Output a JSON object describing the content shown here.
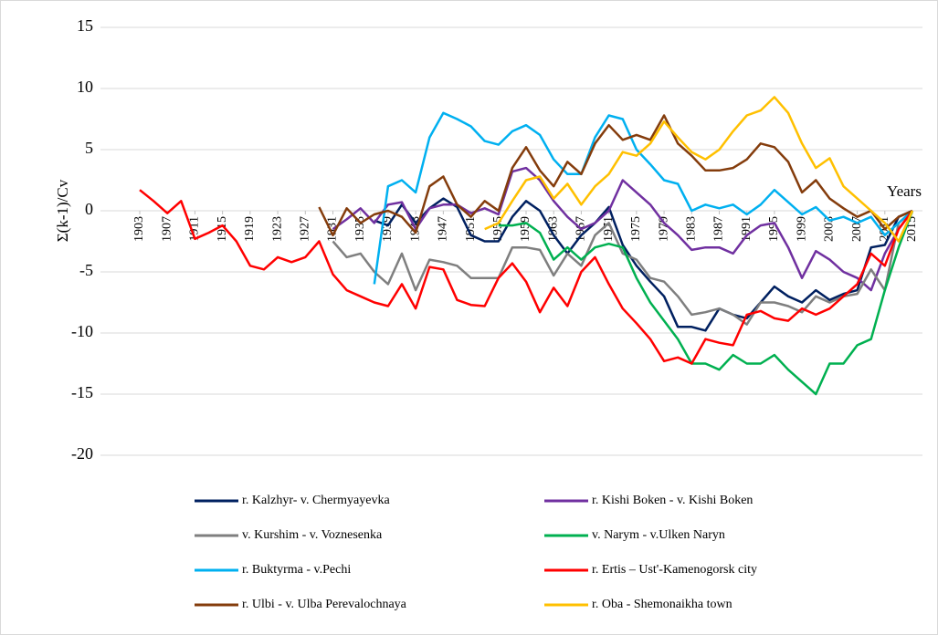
{
  "chart_data": {
    "type": "line",
    "y_label": "Σ(k-1)/Cv",
    "x_label": "Years",
    "x": [
      1903,
      1905,
      1907,
      1909,
      1911,
      1913,
      1915,
      1917,
      1919,
      1921,
      1923,
      1925,
      1927,
      1929,
      1931,
      1933,
      1935,
      1937,
      1939,
      1941,
      1943,
      1945,
      1947,
      1949,
      1951,
      1953,
      1955,
      1957,
      1959,
      1961,
      1963,
      1965,
      1967,
      1969,
      1971,
      1973,
      1975,
      1977,
      1979,
      1981,
      1983,
      1985,
      1987,
      1989,
      1991,
      1993,
      1995,
      1997,
      1999,
      2001,
      2003,
      2005,
      2007,
      2009,
      2011,
      2013,
      2015
    ],
    "xlim": [
      1903,
      2015
    ],
    "xticks": [
      1903,
      1907,
      1911,
      1915,
      1919,
      1923,
      1927,
      1931,
      1935,
      1939,
      1943,
      1947,
      1951,
      1955,
      1959,
      1963,
      1967,
      1971,
      1975,
      1979,
      1983,
      1987,
      1991,
      1995,
      1999,
      2003,
      2007,
      2011,
      2015
    ],
    "ylim": [
      -20,
      15
    ],
    "yticks": [
      -20,
      -15,
      -10,
      -5,
      0,
      5,
      10,
      15
    ],
    "grid": true,
    "legend": "bottom",
    "series": [
      {
        "name": "r. Kalzhyr- v. Chermyayevka",
        "color": "#002060",
        "values": [
          null,
          null,
          null,
          null,
          null,
          null,
          null,
          null,
          null,
          null,
          null,
          null,
          null,
          null,
          null,
          null,
          null,
          -0.8,
          -1.2,
          0.5,
          -1.0,
          0.2,
          1.0,
          0.3,
          -2.0,
          -2.5,
          -2.5,
          -0.5,
          0.8,
          0,
          -2.0,
          -3.5,
          -2.0,
          -1.0,
          0.3,
          -2.8,
          -4.5,
          -5.8,
          -7.0,
          -9.5,
          -9.5,
          -9.8,
          -8.0,
          -8.5,
          -8.8,
          -7.5,
          -6.2,
          -7.0,
          -7.5,
          -6.5,
          -7.3,
          -6.8,
          -6.5,
          -3.0,
          -2.8,
          -0.5,
          0
        ]
      },
      {
        "name": "r. Kishi Boken - v. Kishi Boken",
        "color": "#7030a0",
        "values": [
          null,
          null,
          null,
          null,
          null,
          null,
          null,
          null,
          null,
          null,
          null,
          null,
          null,
          null,
          -1.5,
          -0.7,
          0.2,
          -1.0,
          0.5,
          0.7,
          -1.5,
          0.2,
          0.5,
          0.5,
          -0.2,
          0.2,
          -0.3,
          3.2,
          3.5,
          2.5,
          0.8,
          -0.5,
          -1.5,
          -1.0,
          0,
          2.5,
          1.5,
          0.5,
          -1.0,
          -2.0,
          -3.2,
          -3.0,
          -3.0,
          -3.5,
          -2.0,
          -1.2,
          -1.0,
          -3.0,
          -5.5,
          -3.3,
          -4.0,
          -5.0,
          -5.5,
          -6.5,
          -3.5,
          -1.5,
          0
        ]
      },
      {
        "name": "v. Kurshim - v. Voznesenka",
        "color": "#7f7f7f",
        "values": [
          null,
          null,
          null,
          null,
          null,
          null,
          null,
          null,
          null,
          null,
          null,
          null,
          null,
          null,
          -2.5,
          -3.8,
          -3.5,
          -5.0,
          -6.0,
          -3.5,
          -6.5,
          -4.0,
          -4.2,
          -4.5,
          -5.5,
          -5.5,
          -5.5,
          -3.0,
          -3.0,
          -3.2,
          -5.3,
          -3.5,
          -4.5,
          -2.0,
          -1.0,
          -3.5,
          -4.0,
          -5.5,
          -5.8,
          -7.0,
          -8.5,
          -8.3,
          -8.0,
          -8.5,
          -9.3,
          -7.5,
          -7.5,
          -7.8,
          -8.3,
          -7.0,
          -7.5,
          -7.0,
          -6.8,
          -4.8,
          -6.5,
          -1.0,
          0
        ]
      },
      {
        "name": "v. Narym - v.Ulken Naryn",
        "color": "#00b050",
        "values": [
          null,
          null,
          null,
          null,
          null,
          null,
          null,
          null,
          null,
          null,
          null,
          null,
          null,
          null,
          null,
          null,
          null,
          null,
          null,
          null,
          null,
          null,
          null,
          null,
          null,
          null,
          -1.2,
          -1.2,
          -1.0,
          -1.8,
          -4.0,
          -3.0,
          -4.0,
          -3.0,
          -2.7,
          -3.0,
          -5.5,
          -7.5,
          -9.0,
          -10.5,
          -12.5,
          -12.5,
          -13.0,
          -11.8,
          -12.5,
          -12.5,
          -11.8,
          -13.0,
          -14.0,
          -15.0,
          -12.5,
          -12.5,
          -11.0,
          -10.5,
          -6.5,
          -3.0,
          0
        ]
      },
      {
        "name": "r. Buktyrma - v.Pechi",
        "color": "#00b0f0",
        "values": [
          null,
          null,
          null,
          null,
          null,
          null,
          null,
          null,
          null,
          null,
          null,
          null,
          null,
          null,
          null,
          null,
          null,
          -6.0,
          2.0,
          2.5,
          1.5,
          6.0,
          8.0,
          7.5,
          6.9,
          5.7,
          5.4,
          6.5,
          7.0,
          6.2,
          4.2,
          3.0,
          3.0,
          6.0,
          7.8,
          7.5,
          5.0,
          3.8,
          2.5,
          2.2,
          0,
          0.5,
          0.2,
          0.5,
          -0.3,
          0.5,
          1.7,
          0.7,
          -0.3,
          0.3,
          -0.8,
          -0.5,
          -1.0,
          -0.5,
          -2.0,
          -1.0,
          0
        ]
      },
      {
        "name": "r. Ertis – Ust'-Kamenogorsk city",
        "color": "#ff0000",
        "values": [
          1.7,
          0.8,
          -0.2,
          0.8,
          -2.3,
          -1.8,
          -1.2,
          -2.5,
          -4.5,
          -4.8,
          -3.8,
          -4.2,
          -3.8,
          -2.5,
          -5.2,
          -6.5,
          -7.0,
          -7.5,
          -7.8,
          -6.0,
          -8.0,
          -4.6,
          -4.8,
          -7.3,
          -7.7,
          -7.8,
          -5.5,
          -4.3,
          -5.8,
          -8.3,
          -6.3,
          -7.8,
          -5.0,
          -3.8,
          -6.0,
          -8.0,
          -9.2,
          -10.5,
          -12.3,
          -12.0,
          -12.5,
          -10.5,
          -10.8,
          -11.0,
          -8.5,
          -8.2,
          -8.8,
          -9.0,
          -8.0,
          -8.5,
          -8.0,
          -7.0,
          -6.0,
          -3.5,
          -4.5,
          -1.5,
          0
        ]
      },
      {
        "name": "r. Ulbi - v. Ulba Perevalochnaya",
        "color": "#843c0c",
        "values": [
          null,
          null,
          null,
          null,
          null,
          null,
          null,
          null,
          null,
          null,
          null,
          null,
          null,
          0.3,
          -2.0,
          0.2,
          -1.0,
          -0.3,
          0,
          -0.5,
          -1.8,
          2.0,
          2.8,
          0.5,
          -0.5,
          0.8,
          0,
          3.5,
          5.2,
          3.3,
          2.0,
          4.0,
          3.0,
          5.5,
          7.0,
          5.8,
          6.2,
          5.8,
          7.8,
          5.5,
          4.5,
          3.3,
          3.3,
          3.5,
          4.2,
          5.5,
          5.2,
          4.0,
          1.5,
          2.5,
          1.0,
          0.2,
          -0.5,
          0,
          -1.5,
          -0.5,
          0
        ]
      },
      {
        "name": "r. Oba - Shemonaikha town",
        "color": "#ffc000",
        "values": [
          null,
          null,
          null,
          null,
          null,
          null,
          null,
          null,
          null,
          null,
          null,
          null,
          null,
          null,
          null,
          null,
          null,
          null,
          null,
          null,
          null,
          null,
          null,
          null,
          null,
          -1.5,
          -1.0,
          0.8,
          2.5,
          2.8,
          1.0,
          2.2,
          0.5,
          2.0,
          3.0,
          4.8,
          4.5,
          5.5,
          7.3,
          6.0,
          4.8,
          4.2,
          5.0,
          6.5,
          7.8,
          8.2,
          9.3,
          8.0,
          5.5,
          3.5,
          4.3,
          2.0,
          1.0,
          0,
          -1.0,
          -2.5,
          0
        ]
      }
    ]
  }
}
